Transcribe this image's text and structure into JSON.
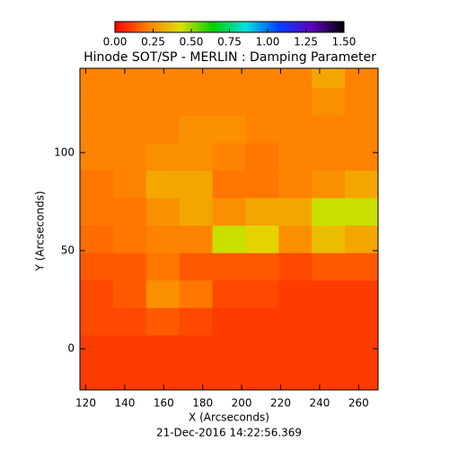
{
  "chart_data": {
    "type": "heatmap",
    "title": "Hinode SOT/SP - MERLIN : Damping Parameter",
    "x_label": "X (Arcseconds)",
    "y_label": "Y (Arcseconds)",
    "footer": "21-Dec-2016 14:22:56.369",
    "xlim": [
      117,
      270
    ],
    "ylim": [
      -21,
      143
    ],
    "xticks": [
      120,
      140,
      160,
      180,
      200,
      220,
      240,
      260
    ],
    "yticks": [
      0,
      50,
      100
    ],
    "xbins": [
      117,
      134,
      151,
      168,
      185,
      202,
      219,
      236,
      253,
      270
    ],
    "ybins": [
      -21,
      -7,
      7,
      21,
      35,
      49,
      63,
      77,
      91,
      105,
      119,
      133,
      143
    ],
    "clim": [
      0,
      1.5
    ],
    "cticks": [
      {
        "value": 0,
        "label": "0.00"
      },
      {
        "value": 0.25,
        "label": "0.25"
      },
      {
        "value": 0.5,
        "label": "0.50"
      },
      {
        "value": 0.75,
        "label": "0.75"
      },
      {
        "value": 1,
        "label": "1.00"
      },
      {
        "value": 1.25,
        "label": "1.25"
      },
      {
        "value": 1.5,
        "label": "1.50"
      }
    ],
    "colormap": [
      "#ff0000",
      "#ff8000",
      "#e0e000",
      "#00d000",
      "#00e0e0",
      "#0040ff",
      "#6000c0",
      "#000000"
    ],
    "z": [
      [
        0.1,
        0.1,
        0.1,
        0.1,
        0.1,
        0.1,
        0.1,
        0.1,
        0.1
      ],
      [
        0.1,
        0.1,
        0.1,
        0.1,
        0.1,
        0.1,
        0.1,
        0.1,
        0.1
      ],
      [
        0.12,
        0.12,
        0.15,
        0.12,
        0.1,
        0.1,
        0.1,
        0.1,
        0.1
      ],
      [
        0.12,
        0.15,
        0.25,
        0.2,
        0.12,
        0.12,
        0.1,
        0.1,
        0.1
      ],
      [
        0.15,
        0.15,
        0.2,
        0.15,
        0.15,
        0.15,
        0.12,
        0.15,
        0.15
      ],
      [
        0.18,
        0.2,
        0.22,
        0.22,
        0.45,
        0.4,
        0.25,
        0.35,
        0.3
      ],
      [
        0.2,
        0.2,
        0.25,
        0.3,
        0.25,
        0.3,
        0.3,
        0.45,
        0.45
      ],
      [
        0.2,
        0.22,
        0.3,
        0.3,
        0.2,
        0.2,
        0.22,
        0.25,
        0.3
      ],
      [
        0.22,
        0.22,
        0.25,
        0.25,
        0.22,
        0.2,
        0.22,
        0.22,
        0.22
      ],
      [
        0.22,
        0.22,
        0.22,
        0.25,
        0.25,
        0.22,
        0.22,
        0.22,
        0.22
      ],
      [
        0.22,
        0.22,
        0.22,
        0.22,
        0.22,
        0.22,
        0.22,
        0.25,
        0.22
      ],
      [
        0.22,
        0.22,
        0.22,
        0.22,
        0.22,
        0.22,
        0.22,
        0.3,
        0.22
      ]
    ]
  }
}
